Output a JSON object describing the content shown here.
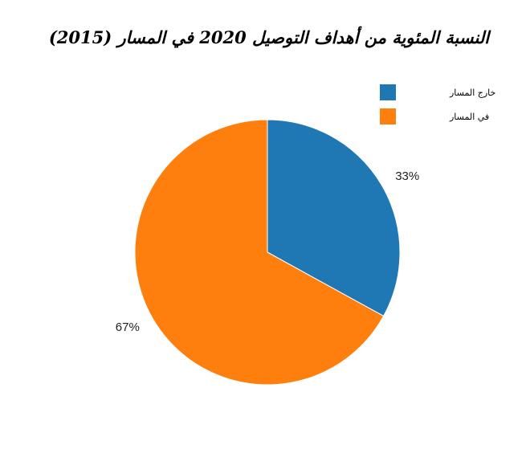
{
  "chart_data": {
    "type": "pie",
    "title": "النسبة المئوية من أهداف التوصيل 2020 في المسار (2015)",
    "slices": [
      {
        "label": "خارج المسار",
        "value": 33,
        "display": "33%",
        "color": "#1f77b4"
      },
      {
        "label": "في المسار",
        "value": 67,
        "display": "67%",
        "color": "#ff7f0e"
      }
    ],
    "legend_position": "top-right"
  }
}
